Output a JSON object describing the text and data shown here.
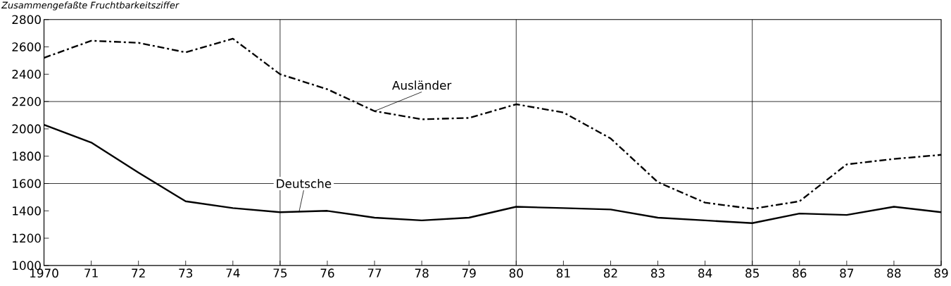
{
  "chart_data": {
    "type": "line",
    "title": "Zusammengefaßte Fruchtbarkeitsziffer",
    "x": [
      1970,
      1971,
      1972,
      1973,
      1974,
      1975,
      1976,
      1977,
      1978,
      1979,
      1980,
      1981,
      1982,
      1983,
      1984,
      1985,
      1986,
      1987,
      1988,
      1989
    ],
    "series": [
      {
        "name": "Ausländer",
        "color": "#000000",
        "line_style": "dashed",
        "values": [
          2520,
          2645,
          2630,
          2560,
          2660,
          2400,
          2290,
          2130,
          2070,
          2080,
          2180,
          2120,
          1930,
          1610,
          1460,
          1415,
          1470,
          1740,
          1780,
          1810
        ]
      },
      {
        "name": "Deutsche",
        "color": "#000000",
        "line_style": "solid",
        "values": [
          2030,
          1900,
          1680,
          1470,
          1420,
          1390,
          1400,
          1350,
          1330,
          1350,
          1430,
          1420,
          1410,
          1350,
          1330,
          1310,
          1380,
          1370,
          1430,
          1390
        ]
      }
    ],
    "xlim": [
      1970,
      1989
    ],
    "xticks": [
      {
        "value": 1970,
        "label": "1970"
      },
      {
        "value": 1971,
        "label": "71"
      },
      {
        "value": 1972,
        "label": "72"
      },
      {
        "value": 1973,
        "label": "73"
      },
      {
        "value": 1974,
        "label": "74"
      },
      {
        "value": 1975,
        "label": "75"
      },
      {
        "value": 1976,
        "label": "76"
      },
      {
        "value": 1977,
        "label": "77"
      },
      {
        "value": 1978,
        "label": "78"
      },
      {
        "value": 1979,
        "label": "79"
      },
      {
        "value": 1980,
        "label": "80"
      },
      {
        "value": 1981,
        "label": "81"
      },
      {
        "value": 1982,
        "label": "82"
      },
      {
        "value": 1983,
        "label": "83"
      },
      {
        "value": 1984,
        "label": "84"
      },
      {
        "value": 1985,
        "label": "85"
      },
      {
        "value": 1986,
        "label": "86"
      },
      {
        "value": 1987,
        "label": "87"
      },
      {
        "value": 1988,
        "label": "88"
      },
      {
        "value": 1989,
        "label": "89"
      }
    ],
    "ylim": [
      1000,
      2800
    ],
    "yticks": [
      1000,
      1200,
      1400,
      1600,
      1800,
      2000,
      2200,
      2400,
      2600,
      2800
    ],
    "ref_lines": [
      {
        "axis": "y",
        "value": 1600
      },
      {
        "axis": "y",
        "value": 2200
      },
      {
        "axis": "x",
        "value": 1975
      },
      {
        "axis": "x",
        "value": 1980
      },
      {
        "axis": "x",
        "value": 1985
      }
    ],
    "grid": false,
    "legend": false,
    "marker": "none"
  }
}
